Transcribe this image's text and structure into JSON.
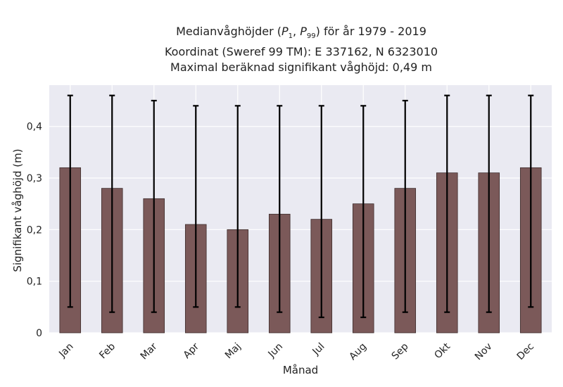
{
  "title_lines": [
    "Medianvåghöjder (P1, P99) för år 1979 - 2019",
    "Koordinat (Sweref 99 TM): E 337162, N 6323010",
    "Maximal beräknad signifikant våghöjd: 0,49 m"
  ],
  "chart_data": {
    "type": "bar",
    "title": "Medianvåghöjder (P1, P99) för år 1979 - 2019",
    "subtitle": "Koordinat (Sweref 99 TM): E 337162, N 6323010 / Maximal beräknad signifikant våghöjd: 0,49 m",
    "xlabel": "Månad",
    "ylabel": "Signifikant våghöjd (m)",
    "categories": [
      "Jan",
      "Feb",
      "Mar",
      "Apr",
      "Maj",
      "Jun",
      "Jul",
      "Aug",
      "Sep",
      "Okt",
      "Nov",
      "Dec"
    ],
    "values": [
      0.32,
      0.28,
      0.26,
      0.21,
      0.2,
      0.23,
      0.22,
      0.25,
      0.28,
      0.31,
      0.31,
      0.32
    ],
    "error_low": [
      0.05,
      0.04,
      0.04,
      0.05,
      0.05,
      0.04,
      0.03,
      0.03,
      0.04,
      0.04,
      0.04,
      0.05
    ],
    "error_high": [
      0.46,
      0.46,
      0.45,
      0.44,
      0.44,
      0.44,
      0.44,
      0.44,
      0.45,
      0.46,
      0.46,
      0.46
    ],
    "ylim": [
      0,
      0.48
    ],
    "yticks": [
      0,
      0.1,
      0.2,
      0.3,
      0.4
    ],
    "ytick_labels": [
      "0",
      "0,1",
      "0,2",
      "0,3",
      "0,4"
    ],
    "grid": true,
    "colors": {
      "bar": "#7b5959",
      "bar_edge": "#3d2c2c",
      "error": "#000000",
      "background": "#eaeaf2",
      "grid": "#ffffff"
    }
  }
}
